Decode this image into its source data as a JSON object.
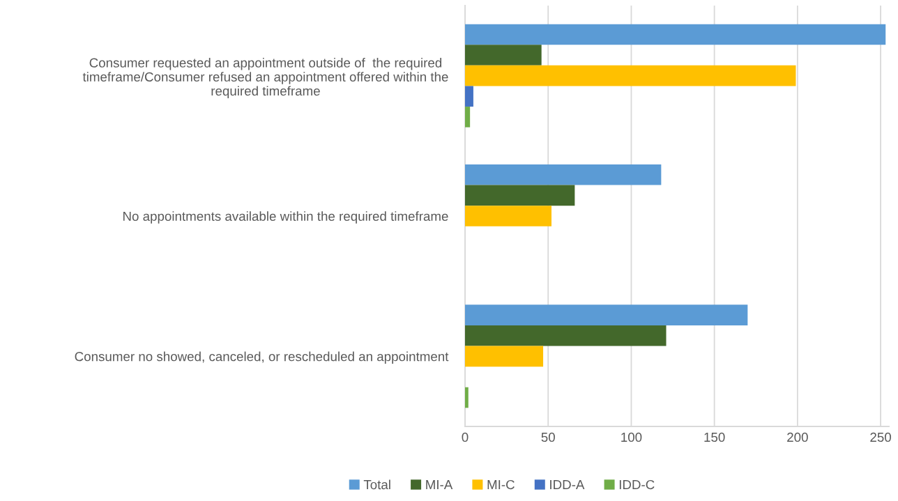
{
  "chart_data": {
    "type": "bar",
    "orientation": "horizontal",
    "categories": [
      "Consumer requested an appointment outside of  the required\ntimeframe/Consumer refused an appointment offered within the\nrequired timeframe",
      "No appointments available within the required timeframe",
      "Consumer no showed, canceled, or rescheduled an appointment"
    ],
    "series": [
      {
        "name": "Total",
        "color": "#5b9bd5",
        "values": [
          253,
          118,
          170
        ]
      },
      {
        "name": "MI-A",
        "color": "#43682b",
        "values": [
          46,
          66,
          121
        ]
      },
      {
        "name": "MI-C",
        "color": "#ffc000",
        "values": [
          199,
          52,
          47
        ]
      },
      {
        "name": "IDD-A",
        "color": "#4472c4",
        "values": [
          5,
          null,
          null
        ]
      },
      {
        "name": "IDD-C",
        "color": "#70ad47",
        "values": [
          3,
          null,
          2
        ]
      }
    ],
    "xlim": [
      0,
      255
    ],
    "xticks": [
      0,
      50,
      100,
      150,
      200,
      250
    ],
    "grid": "x",
    "legend": "bottom"
  }
}
